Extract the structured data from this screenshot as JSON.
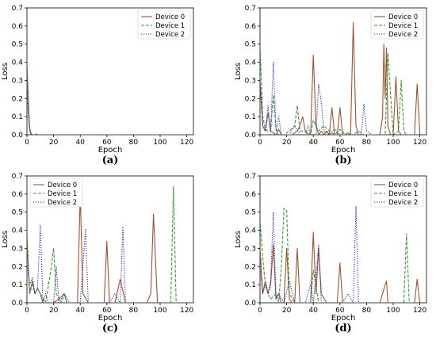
{
  "figure": {
    "panels": [
      "(a)",
      "(b)",
      "(c)",
      "(d)"
    ]
  },
  "chart_data": [
    {
      "id": "a",
      "caption": "(a)",
      "type": "line",
      "xlabel": "Epoch",
      "ylabel": "Loss",
      "xlim": [
        0,
        125
      ],
      "ylim": [
        0,
        0.7
      ],
      "xticks": [
        0,
        20,
        40,
        60,
        80,
        100,
        120
      ],
      "yticks": [
        0.0,
        0.1,
        0.2,
        0.3,
        0.4,
        0.5,
        0.6,
        0.7
      ],
      "grid": false,
      "legend_position": "top-right",
      "series": [
        {
          "name": "Device 0",
          "color": "#a0522d",
          "dash": "solid",
          "x": [
            0,
            1,
            2,
            3,
            4,
            5,
            6,
            7,
            8,
            9,
            10,
            12,
            15,
            20,
            40,
            60,
            80,
            100,
            120
          ],
          "y": [
            0.4,
            0.2,
            0.04,
            0.01,
            0.0,
            0.0,
            0.0,
            0.005,
            0.0,
            0.0,
            0.0,
            0.0,
            0.0,
            0.0,
            0.0,
            0.0,
            0.0,
            0.0,
            0.0
          ]
        },
        {
          "name": "Device 1",
          "color": "#2ca02c",
          "dash": "dashed",
          "x": [
            0,
            1,
            2,
            3,
            4,
            5,
            8,
            20,
            60,
            120
          ],
          "y": [
            0.34,
            0.15,
            0.03,
            0.0,
            0.0,
            0.0,
            0.0,
            0.0,
            0.0,
            0.0
          ]
        },
        {
          "name": "Device 2",
          "color": "#1f1fcc",
          "dash": "dotted",
          "x": [
            0,
            1,
            2,
            3,
            4,
            5,
            8,
            20,
            60,
            120
          ],
          "y": [
            0.28,
            0.1,
            0.02,
            0.0,
            0.0,
            0.0,
            0.0,
            0.0,
            0.0,
            0.0
          ]
        }
      ]
    },
    {
      "id": "b",
      "caption": "(b)",
      "type": "line",
      "xlabel": "Epoch",
      "ylabel": "Loss",
      "xlim": [
        0,
        125
      ],
      "ylim": [
        0,
        0.7
      ],
      "xticks": [
        0,
        20,
        40,
        60,
        80,
        100,
        120
      ],
      "yticks": [
        0.0,
        0.1,
        0.2,
        0.3,
        0.4,
        0.5,
        0.6,
        0.7
      ],
      "grid": false,
      "legend_position": "top-right",
      "series": [
        {
          "name": "Device 0",
          "color": "#a0522d",
          "dash": "solid",
          "x": [
            0,
            2,
            4,
            6,
            8,
            10,
            12,
            14,
            16,
            18,
            20,
            24,
            28,
            30,
            32,
            34,
            36,
            38,
            40,
            42,
            44,
            46,
            48,
            50,
            52,
            54,
            56,
            58,
            60,
            62,
            64,
            66,
            68,
            70,
            72,
            74,
            76,
            78,
            80,
            84,
            88,
            90,
            92,
            93,
            94,
            95,
            96,
            98,
            100,
            102,
            104,
            106,
            108,
            110,
            112,
            114,
            116,
            118,
            120
          ],
          "y": [
            0.3,
            0.05,
            0.02,
            0.12,
            0.02,
            0.01,
            0.0,
            0.03,
            0.0,
            0.0,
            0.0,
            0.0,
            0.02,
            0.05,
            0.1,
            0.02,
            0.0,
            0.0,
            0.44,
            0.05,
            0.0,
            0.02,
            0.0,
            0.02,
            0.0,
            0.15,
            0.0,
            0.0,
            0.15,
            0.0,
            0.0,
            0.01,
            0.0,
            0.62,
            0.05,
            0.0,
            0.0,
            0.0,
            0.0,
            0.0,
            0.0,
            0.0,
            0.1,
            0.5,
            0.2,
            0.48,
            0.05,
            0.0,
            0.0,
            0.32,
            0.02,
            0.0,
            0.0,
            0.0,
            0.0,
            0.0,
            0.0,
            0.28,
            0.0
          ]
        },
        {
          "name": "Device 1",
          "color": "#2ca02c",
          "dash": "dashed",
          "x": [
            0,
            2,
            4,
            6,
            8,
            10,
            12,
            14,
            18,
            22,
            26,
            28,
            30,
            34,
            38,
            40,
            44,
            48,
            52,
            56,
            60,
            64,
            68,
            70,
            74,
            78,
            82,
            86,
            90,
            94,
            96,
            100,
            104,
            106,
            108,
            110,
            114,
            118,
            120
          ],
          "y": [
            0.5,
            0.1,
            0.03,
            0.02,
            0.02,
            0.22,
            0.03,
            0.0,
            0.0,
            0.02,
            0.05,
            0.16,
            0.02,
            0.02,
            0.0,
            0.08,
            0.02,
            0.05,
            0.02,
            0.0,
            0.03,
            0.0,
            0.0,
            0.0,
            0.02,
            0.0,
            0.0,
            0.0,
            0.0,
            0.0,
            0.45,
            0.0,
            0.02,
            0.3,
            0.02,
            0.0,
            0.0,
            0.0,
            0.0
          ]
        },
        {
          "name": "Device 2",
          "color": "#1f1fcc",
          "dash": "dotted",
          "x": [
            0,
            2,
            4,
            6,
            8,
            10,
            12,
            14,
            16,
            18,
            22,
            26,
            30,
            34,
            36,
            38,
            42,
            44,
            46,
            48,
            52,
            56,
            60,
            64,
            68,
            72,
            76,
            78,
            80,
            84,
            88,
            92,
            96,
            100,
            104,
            108,
            112,
            116,
            120
          ],
          "y": [
            0.3,
            0.05,
            0.02,
            0.16,
            0.02,
            0.4,
            0.02,
            0.1,
            0.0,
            0.0,
            0.0,
            0.05,
            0.0,
            0.0,
            0.05,
            0.0,
            0.0,
            0.28,
            0.18,
            0.02,
            0.0,
            0.03,
            0.0,
            0.0,
            0.0,
            0.0,
            0.0,
            0.17,
            0.02,
            0.0,
            0.0,
            0.0,
            0.0,
            0.0,
            0.0,
            0.0,
            0.0,
            0.0,
            0.0
          ]
        }
      ]
    },
    {
      "id": "c",
      "caption": "(c)",
      "type": "line",
      "xlabel": "Epoch",
      "ylabel": "Loss",
      "xlim": [
        0,
        125
      ],
      "ylim": [
        0,
        0.7
      ],
      "xticks": [
        0,
        20,
        40,
        60,
        80,
        100,
        120
      ],
      "yticks": [
        0.0,
        0.1,
        0.2,
        0.3,
        0.4,
        0.5,
        0.6,
        0.7
      ],
      "grid": false,
      "legend_position": "top-left",
      "series": [
        {
          "name": "Device 0",
          "color": "#a0522d",
          "dash": "solid",
          "x": [
            0,
            2,
            4,
            6,
            8,
            10,
            12,
            14,
            16,
            20,
            24,
            28,
            30,
            34,
            38,
            40,
            42,
            46,
            50,
            54,
            58,
            60,
            62,
            66,
            70,
            74,
            78,
            82,
            86,
            90,
            93,
            95,
            98,
            102,
            106,
            110,
            114,
            120
          ],
          "y": [
            0.35,
            0.05,
            0.12,
            0.05,
            0.08,
            0.05,
            0.0,
            0.0,
            0.0,
            0.0,
            0.02,
            0.05,
            0.0,
            0.0,
            0.0,
            0.6,
            0.05,
            0.0,
            0.0,
            0.0,
            0.0,
            0.34,
            0.0,
            0.0,
            0.13,
            0.0,
            0.0,
            0.0,
            0.0,
            0.0,
            0.05,
            0.49,
            0.0,
            0.0,
            0.0,
            0.0,
            0.0,
            0.0
          ]
        },
        {
          "name": "Device 1",
          "color": "#2ca02c",
          "dash": "dashed",
          "x": [
            0,
            2,
            4,
            6,
            8,
            10,
            14,
            18,
            20,
            22,
            26,
            28,
            30,
            34,
            38,
            42,
            46,
            50,
            54,
            58,
            62,
            66,
            70,
            74,
            78,
            82,
            86,
            90,
            94,
            98,
            102,
            106,
            108,
            110,
            112,
            116,
            120
          ],
          "y": [
            0.4,
            0.05,
            0.1,
            0.05,
            0.08,
            0.05,
            0.0,
            0.18,
            0.3,
            0.05,
            0.0,
            0.05,
            0.0,
            0.0,
            0.0,
            0.0,
            0.0,
            0.0,
            0.0,
            0.0,
            0.0,
            0.0,
            0.0,
            0.0,
            0.0,
            0.0,
            0.0,
            0.0,
            0.0,
            0.0,
            0.0,
            0.0,
            0.0,
            0.64,
            0.0,
            0.0,
            0.0
          ]
        },
        {
          "name": "Device 2",
          "color": "#1f1fcc",
          "dash": "dotted",
          "x": [
            0,
            2,
            4,
            6,
            8,
            10,
            12,
            14,
            16,
            20,
            22,
            24,
            28,
            32,
            36,
            40,
            44,
            46,
            50,
            54,
            58,
            62,
            66,
            70,
            72,
            74,
            78,
            82,
            86,
            90,
            94,
            98,
            102,
            106,
            110,
            114,
            120
          ],
          "y": [
            0.22,
            0.1,
            0.14,
            0.05,
            0.08,
            0.43,
            0.0,
            0.05,
            0.0,
            0.0,
            0.2,
            0.0,
            0.05,
            0.0,
            0.0,
            0.0,
            0.41,
            0.0,
            0.0,
            0.0,
            0.0,
            0.0,
            0.05,
            0.0,
            0.42,
            0.0,
            0.0,
            0.0,
            0.0,
            0.0,
            0.0,
            0.0,
            0.0,
            0.0,
            0.0,
            0.0,
            0.0
          ]
        }
      ]
    },
    {
      "id": "d",
      "caption": "(d)",
      "type": "line",
      "xlabel": "Epoch",
      "ylabel": "Loss",
      "xlim": [
        0,
        125
      ],
      "ylim": [
        0,
        0.7
      ],
      "xticks": [
        0,
        20,
        40,
        60,
        80,
        100,
        120
      ],
      "yticks": [
        0.0,
        0.1,
        0.2,
        0.3,
        0.4,
        0.5,
        0.6,
        0.7
      ],
      "grid": false,
      "legend_position": "top-right",
      "series": [
        {
          "name": "Device 0",
          "color": "#a0522d",
          "dash": "solid",
          "x": [
            0,
            2,
            4,
            6,
            8,
            10,
            12,
            14,
            16,
            18,
            20,
            22,
            24,
            26,
            28,
            30,
            34,
            38,
            40,
            42,
            44,
            46,
            50,
            54,
            58,
            60,
            62,
            66,
            70,
            74,
            78,
            82,
            86,
            90,
            94,
            95,
            96,
            100,
            104,
            108,
            112,
            116,
            118,
            120
          ],
          "y": [
            0.3,
            0.05,
            0.12,
            0.05,
            0.1,
            0.32,
            0.02,
            0.05,
            0.0,
            0.0,
            0.3,
            0.02,
            0.0,
            0.0,
            0.3,
            0.0,
            0.0,
            0.0,
            0.39,
            0.05,
            0.3,
            0.05,
            0.0,
            0.0,
            0.0,
            0.22,
            0.0,
            0.0,
            0.0,
            0.0,
            0.0,
            0.0,
            0.0,
            0.0,
            0.1,
            0.12,
            0.0,
            0.0,
            0.0,
            0.0,
            0.0,
            0.0,
            0.13,
            0.0
          ]
        },
        {
          "name": "Device 1",
          "color": "#2ca02c",
          "dash": "dashed",
          "x": [
            0,
            2,
            4,
            6,
            8,
            12,
            14,
            16,
            18,
            20,
            22,
            26,
            30,
            34,
            38,
            40,
            44,
            48,
            52,
            56,
            60,
            64,
            68,
            72,
            76,
            80,
            84,
            88,
            92,
            96,
            100,
            104,
            108,
            110,
            112,
            116,
            120
          ],
          "y": [
            0.46,
            0.25,
            0.1,
            0.05,
            0.02,
            0.05,
            0.0,
            0.2,
            0.52,
            0.51,
            0.05,
            0.0,
            0.0,
            0.0,
            0.0,
            0.18,
            0.0,
            0.0,
            0.0,
            0.0,
            0.0,
            0.0,
            0.0,
            0.0,
            0.0,
            0.0,
            0.0,
            0.0,
            0.0,
            0.0,
            0.0,
            0.0,
            0.0,
            0.38,
            0.0,
            0.0,
            0.0
          ]
        },
        {
          "name": "Device 2",
          "color": "#1f1fcc",
          "dash": "dotted",
          "x": [
            0,
            2,
            4,
            6,
            8,
            10,
            12,
            14,
            18,
            22,
            26,
            30,
            34,
            38,
            40,
            42,
            44,
            46,
            50,
            54,
            58,
            62,
            66,
            70,
            72,
            74,
            78,
            82,
            86,
            90,
            94,
            98,
            102,
            106,
            110,
            114,
            120
          ],
          "y": [
            0.2,
            0.05,
            0.1,
            0.05,
            0.12,
            0.5,
            0.02,
            0.05,
            0.0,
            0.12,
            0.0,
            0.0,
            0.0,
            0.1,
            0.0,
            0.15,
            0.32,
            0.0,
            0.0,
            0.0,
            0.0,
            0.0,
            0.05,
            0.0,
            0.53,
            0.0,
            0.0,
            0.0,
            0.0,
            0.0,
            0.0,
            0.0,
            0.0,
            0.0,
            0.0,
            0.0,
            0.0
          ]
        }
      ]
    }
  ]
}
